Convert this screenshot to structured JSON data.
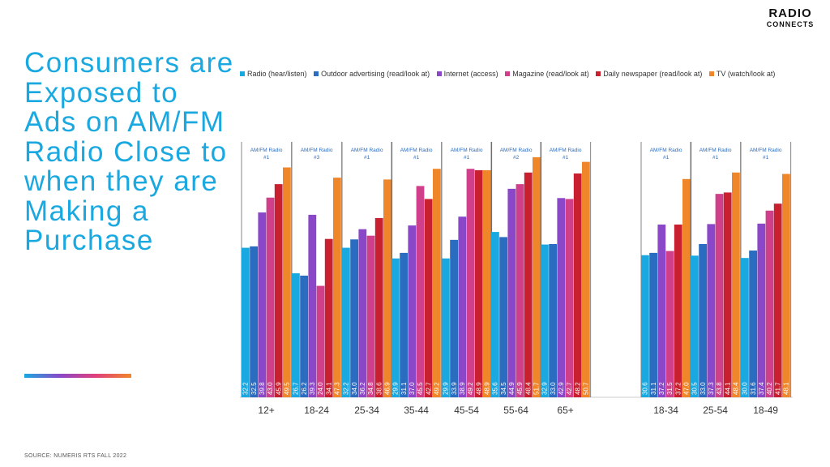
{
  "logo": {
    "line1": "RADIO",
    "line2": "CONNECTS"
  },
  "headline": "Consumers are Exposed to Ads on AM/FM Radio Close to when they are Making a Purchase",
  "source": "SOURCE:  NUMERIS RTS FALL 2022",
  "colors": {
    "headline": "#1aa8e0",
    "accent_gradient": [
      "#1aa8e0",
      "#8a48c8",
      "#e0407a",
      "#f0862a"
    ]
  },
  "chart_data": {
    "type": "bar",
    "series": [
      {
        "name": "Radio (hear/listen)",
        "color": "#1aa8e0"
      },
      {
        "name": "Outdoor advertising (read/look at)",
        "color": "#2a6cc0"
      },
      {
        "name": "Internet (access)",
        "color": "#8a48c8"
      },
      {
        "name": "Magazine (read/look at)",
        "color": "#d0408a"
      },
      {
        "name": "Daily newspaper (read/look at)",
        "color": "#c8202e"
      },
      {
        "name": "TV (watch/look at)",
        "color": "#f0862a"
      }
    ],
    "ylim": [
      0,
      55
    ],
    "groups": [
      {
        "category": "12+",
        "rank_label": "AM/FM Radio",
        "rank": "#1",
        "values": [
          32.2,
          32.5,
          39.8,
          43.0,
          45.9,
          49.5
        ],
        "labels": [
          "32.2",
          "32.5",
          "39.8",
          "43.0",
          "45.9",
          "49.5"
        ]
      },
      {
        "category": "18-24",
        "rank_label": "AM/FM Radio",
        "rank": "#3",
        "values": [
          26.7,
          26.2,
          39.3,
          24.0,
          34.1,
          47.3
        ],
        "labels": [
          "26.7",
          "26.2",
          "39.3",
          "24.0",
          "34.1",
          "47.3"
        ]
      },
      {
        "category": "25-34",
        "rank_label": "AM/FM Radio",
        "rank": "#1",
        "values": [
          32.2,
          34.0,
          36.2,
          34.8,
          38.6,
          46.9
        ],
        "labels": [
          "32.2",
          "34.0",
          "36.2",
          "34.8",
          "38.6",
          "46.9"
        ]
      },
      {
        "category": "35-44",
        "rank_label": "AM/FM Radio",
        "rank": "#1",
        "values": [
          29.9,
          31.1,
          37.0,
          45.5,
          42.7,
          49.2
        ],
        "labels": [
          "29.9",
          "31.1",
          "37.0",
          "45.5",
          "42.7",
          "49.2"
        ]
      },
      {
        "category": "45-54",
        "rank_label": "AM/FM Radio",
        "rank": "#1",
        "values": [
          29.9,
          33.9,
          38.9,
          49.2,
          48.9,
          48.9
        ],
        "labels": [
          "29.9",
          "33.9",
          "38.9",
          "49.2",
          "48.9",
          "48.9"
        ]
      },
      {
        "category": "55-64",
        "rank_label": "AM/FM Radio",
        "rank": "#2",
        "values": [
          35.6,
          34.5,
          44.9,
          45.9,
          48.4,
          51.7
        ],
        "labels": [
          "35.6",
          "34.5",
          "44.9",
          "45.9",
          "48.4",
          "51.7"
        ]
      },
      {
        "category": "65+",
        "rank_label": "AM/FM Radio",
        "rank": "#1",
        "values": [
          32.9,
          33.0,
          42.9,
          42.7,
          48.2,
          50.7
        ],
        "labels": [
          "32.9",
          "33.0",
          "42.9",
          "42.7",
          "48.2",
          "50.7"
        ]
      },
      {
        "category": "18-34",
        "rank_label": "AM/FM Radio",
        "rank": "#1",
        "values": [
          30.6,
          31.1,
          37.2,
          31.5,
          37.2,
          47.0
        ],
        "labels": [
          "30.6",
          "31.1",
          "37.2",
          "31.5",
          "37.2",
          "47.0"
        ]
      },
      {
        "category": "25-54",
        "rank_label": "AM/FM Radio",
        "rank": "#1",
        "values": [
          30.5,
          33.0,
          37.3,
          43.8,
          44.1,
          48.4
        ],
        "labels": [
          "30.5",
          "33.0",
          "37.3",
          "43.8",
          "44.1",
          "48.4"
        ]
      },
      {
        "category": "18-49",
        "rank_label": "AM/FM Radio",
        "rank": "#1",
        "values": [
          30.0,
          31.6,
          37.4,
          40.2,
          41.7,
          48.1
        ],
        "labels": [
          "30.0",
          "31.6",
          "37.4",
          "40.2",
          "41.7",
          "48.1"
        ]
      }
    ]
  }
}
